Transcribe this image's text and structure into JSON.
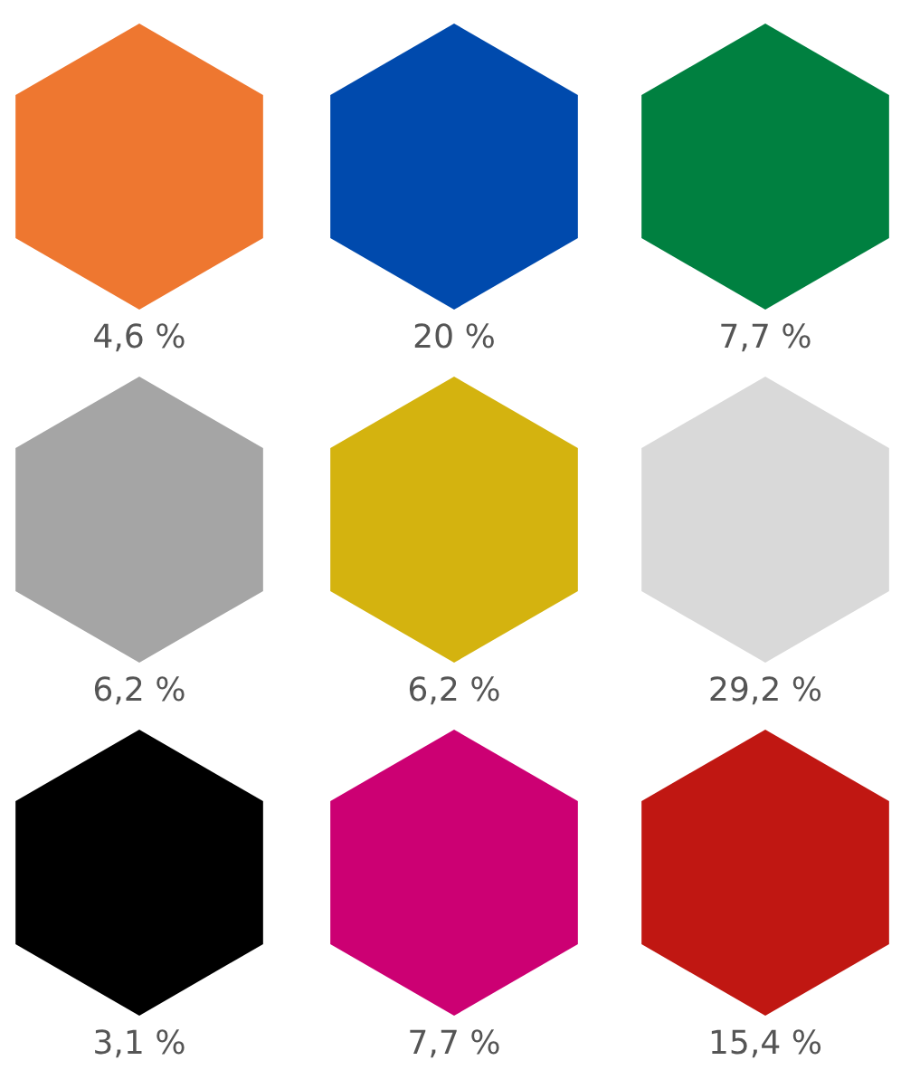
{
  "chart_data": {
    "type": "other",
    "categories": [
      null,
      null,
      null,
      null,
      null,
      null,
      null,
      null,
      null
    ],
    "values": [
      4.6,
      20,
      7.7,
      6.2,
      6.2,
      29.2,
      3.1,
      7.7,
      15.4
    ],
    "value_labels": [
      "4,6 %",
      "20 %",
      "7,7 %",
      "6,2 %",
      "6,2 %",
      "29,2 %",
      "3,1 %",
      "7,7 %",
      "15,4 %"
    ],
    "colors": [
      "#ee7730",
      "#004aad",
      "#008040",
      "#a5a5a5",
      "#d4b30f",
      "#d9d9d9",
      "#000000",
      "#cc0073",
      "#c01712"
    ]
  }
}
